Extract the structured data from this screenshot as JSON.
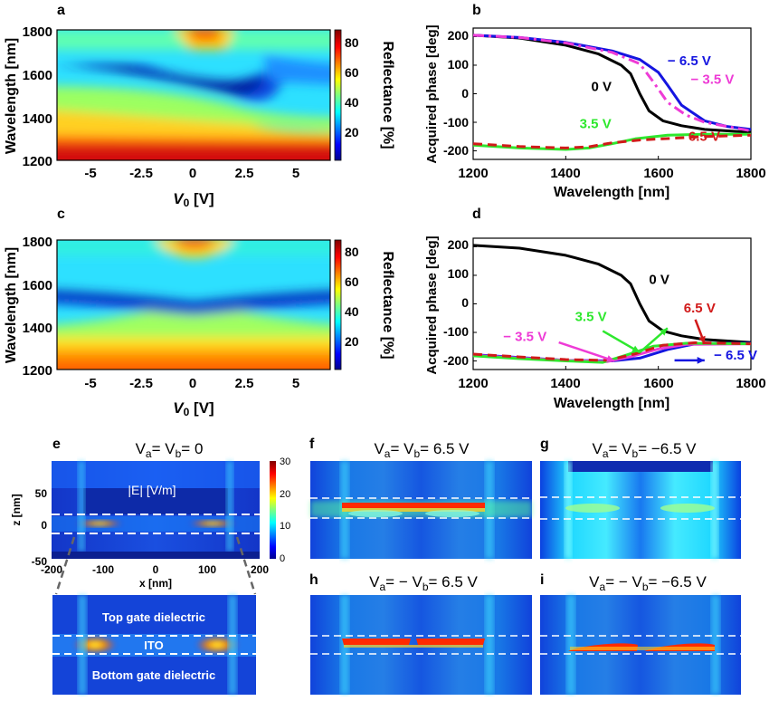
{
  "colors": {
    "black": "#000000",
    "blue": "#1515e0",
    "magenta": "#ee3bd6",
    "green": "#2ee82e",
    "red": "#d11a1a"
  },
  "chart_data": [
    {
      "id": "a",
      "panel_label": "a",
      "type": "heatmap",
      "xlabel": "V",
      "xlabel_sub": "0",
      "xlabel_unit": " [V]",
      "ylabel": "Wavelength [nm]",
      "xticks": [
        "-5",
        "-2.5",
        "0",
        "2.5",
        "5"
      ],
      "yticks": [
        "1200",
        "1400",
        "1600",
        "1800"
      ],
      "colorbar_label": "Reflectance [%]",
      "colorbar_ticks": [
        "20",
        "40",
        "60",
        "80"
      ],
      "xlim": [
        -6.5,
        6.5
      ],
      "ylim": [
        1200,
        1800
      ],
      "zlim": [
        0,
        88
      ]
    },
    {
      "id": "b",
      "panel_label": "b",
      "type": "line",
      "xlabel": "Wavelength [nm]",
      "ylabel": "Acquired phase [deg]",
      "xticks": [
        "1200",
        "1400",
        "1600",
        "1800"
      ],
      "yticks": [
        "200",
        "100",
        "0",
        "-100",
        "-200"
      ],
      "xlim": [
        1200,
        1800
      ],
      "ylim": [
        -230,
        230
      ],
      "series": [
        {
          "name": "0 V",
          "color": "#000000",
          "dash": "",
          "points": [
            [
              1200,
              205
            ],
            [
              1300,
              195
            ],
            [
              1400,
              170
            ],
            [
              1470,
              140
            ],
            [
              1520,
              100
            ],
            [
              1540,
              70
            ],
            [
              1560,
              0
            ],
            [
              1580,
              -60
            ],
            [
              1610,
              -95
            ],
            [
              1650,
              -112
            ],
            [
              1700,
              -125
            ],
            [
              1800,
              -135
            ]
          ]
        },
        {
          "name": "− 6.5 V",
          "color": "#1515e0",
          "dash": "",
          "points": [
            [
              1200,
              205
            ],
            [
              1300,
              197
            ],
            [
              1400,
              180
            ],
            [
              1500,
              150
            ],
            [
              1560,
              120
            ],
            [
              1600,
              75
            ],
            [
              1620,
              30
            ],
            [
              1650,
              -40
            ],
            [
              1700,
              -95
            ],
            [
              1750,
              -115
            ],
            [
              1800,
              -125
            ]
          ]
        },
        {
          "name": "− 3.5 V",
          "color": "#ee3bd6",
          "dash": "12 5 3 5",
          "points": [
            [
              1200,
              205
            ],
            [
              1300,
              197
            ],
            [
              1400,
              178
            ],
            [
              1500,
              145
            ],
            [
              1560,
              105
            ],
            [
              1590,
              40
            ],
            [
              1620,
              -30
            ],
            [
              1660,
              -75
            ],
            [
              1700,
              -100
            ],
            [
              1800,
              -130
            ]
          ]
        },
        {
          "name": "3.5 V",
          "color": "#2ee82e",
          "dash": "",
          "points": [
            [
              1200,
              -180
            ],
            [
              1300,
              -190
            ],
            [
              1400,
              -195
            ],
            [
              1450,
              -190
            ],
            [
              1500,
              -175
            ],
            [
              1550,
              -158
            ],
            [
              1620,
              -145
            ],
            [
              1700,
              -142
            ],
            [
              1800,
              -142
            ]
          ]
        },
        {
          "name": "6.5 V",
          "color": "#d11a1a",
          "dash": "10 6",
          "points": [
            [
              1200,
              -175
            ],
            [
              1300,
              -185
            ],
            [
              1400,
              -190
            ],
            [
              1450,
              -186
            ],
            [
              1500,
              -172
            ],
            [
              1560,
              -162
            ],
            [
              1640,
              -155
            ],
            [
              1700,
              -150
            ],
            [
              1800,
              -145
            ]
          ]
        }
      ],
      "labels": [
        {
          "text": "− 6.5 V",
          "color": "#1515e0",
          "x": 1620,
          "y": 100
        },
        {
          "text": "− 3.5 V",
          "color": "#ee3bd6",
          "x": 1670,
          "y": 35
        },
        {
          "text": "0 V",
          "color": "#000000",
          "x": 1455,
          "y": 10
        },
        {
          "text": "3.5 V",
          "color": "#2ee82e",
          "x": 1430,
          "y": -120
        },
        {
          "text": "6.5 V",
          "color": "#d11a1a",
          "x": 1665,
          "y": -165
        }
      ]
    },
    {
      "id": "c",
      "panel_label": "c",
      "type": "heatmap",
      "xlabel": "V",
      "xlabel_sub": "0",
      "xlabel_unit": " [V]",
      "ylabel": "Wavelength [nm]",
      "xticks": [
        "-5",
        "-2.5",
        "0",
        "2.5",
        "5"
      ],
      "yticks": [
        "1200",
        "1400",
        "1600",
        "1800"
      ],
      "colorbar_label": "Reflectance [%]",
      "colorbar_ticks": [
        "20",
        "40",
        "60",
        "80"
      ],
      "xlim": [
        -6.5,
        6.5
      ],
      "ylim": [
        1200,
        1800
      ],
      "zlim": [
        0,
        88
      ]
    },
    {
      "id": "d",
      "panel_label": "d",
      "type": "line",
      "xlabel": "Wavelength [nm]",
      "ylabel": "Acquired phase [deg]",
      "xticks": [
        "1200",
        "1400",
        "1600",
        "1800"
      ],
      "yticks": [
        "200",
        "100",
        "0",
        "-100",
        "-200"
      ],
      "xlim": [
        1200,
        1800
      ],
      "ylim": [
        -230,
        230
      ],
      "series": [
        {
          "name": "0 V",
          "color": "#000000",
          "dash": "",
          "points": [
            [
              1200,
              205
            ],
            [
              1300,
              195
            ],
            [
              1400,
              170
            ],
            [
              1470,
              140
            ],
            [
              1520,
              100
            ],
            [
              1540,
              70
            ],
            [
              1560,
              0
            ],
            [
              1580,
              -60
            ],
            [
              1610,
              -95
            ],
            [
              1650,
              -112
            ],
            [
              1700,
              -125
            ],
            [
              1800,
              -135
            ]
          ]
        },
        {
          "name": "− 6.5 V",
          "color": "#1515e0",
          "dash": "",
          "points": [
            [
              1200,
              -178
            ],
            [
              1300,
              -188
            ],
            [
              1400,
              -198
            ],
            [
              1500,
              -200
            ],
            [
              1560,
              -190
            ],
            [
              1620,
              -160
            ],
            [
              1680,
              -140
            ],
            [
              1740,
              -138
            ],
            [
              1800,
              -138
            ]
          ]
        },
        {
          "name": "− 3.5 V",
          "color": "#ee3bd6",
          "dash": "",
          "points": [
            [
              1200,
              -180
            ],
            [
              1300,
              -190
            ],
            [
              1400,
              -198
            ],
            [
              1490,
              -202
            ],
            [
              1540,
              -185
            ],
            [
              1600,
              -158
            ],
            [
              1660,
              -142
            ],
            [
              1800,
              -140
            ]
          ]
        },
        {
          "name": "3.5 V",
          "color": "#2ee82e",
          "dash": "",
          "points": [
            [
              1200,
              -182
            ],
            [
              1300,
              -192
            ],
            [
              1400,
              -200
            ],
            [
              1480,
              -205
            ],
            [
              1530,
              -180
            ],
            [
              1590,
              -148
            ],
            [
              1660,
              -138
            ],
            [
              1800,
              -140
            ]
          ]
        },
        {
          "name": "6.5 V",
          "color": "#d11a1a",
          "dash": "10 6",
          "points": [
            [
              1200,
              -176
            ],
            [
              1300,
              -186
            ],
            [
              1400,
              -195
            ],
            [
              1490,
              -198
            ],
            [
              1550,
              -175
            ],
            [
              1610,
              -145
            ],
            [
              1680,
              -136
            ],
            [
              1800,
              -140
            ]
          ]
        }
      ],
      "labels": [
        {
          "text": "0 V",
          "color": "#000000",
          "x": 1580,
          "y": 70
        },
        {
          "text": "6.5 V",
          "color": "#d11a1a",
          "x": 1655,
          "y": -30
        },
        {
          "text": "3.5 V",
          "color": "#2ee82e",
          "x": 1420,
          "y": -60
        },
        {
          "text": "− 3.5 V",
          "color": "#ee3bd6",
          "x": 1265,
          "y": -130
        },
        {
          "text": "− 6.5 V",
          "color": "#1515e0",
          "x": 1720,
          "y": -195
        }
      ],
      "arrows": [
        {
          "color": "#d11a1a",
          "from": [
            1680,
            -55
          ],
          "to": [
            1700,
            -140
          ]
        },
        {
          "color": "#2ee82e",
          "from": [
            1480,
            -95
          ],
          "to": [
            1560,
            -170
          ]
        },
        {
          "color": "#2ee82e",
          "from": [
            1560,
            -170
          ],
          "to": [
            1620,
            -85
          ]
        },
        {
          "color": "#ee3bd6",
          "from": [
            1385,
            -135
          ],
          "to": [
            1505,
            -200
          ]
        },
        {
          "color": "#1515e0",
          "from": [
            1635,
            -198
          ],
          "to": [
            1700,
            -198
          ]
        }
      ]
    }
  ],
  "field_maps": {
    "e": {
      "panel_label": "e",
      "title": "V",
      "title_sub_a": "a",
      "title_eq": "= V",
      "title_sub_b": "b",
      "title_rest": "= 0",
      "field_label": "|E| [V/m]",
      "xlabel": "x [nm]",
      "ylabel": "z [nm]",
      "xticks": [
        "-200",
        "-100",
        "0",
        "100",
        "200"
      ],
      "yticks": [
        "50",
        "0",
        "-50"
      ],
      "colorbar_ticks": [
        "30",
        "20",
        "10",
        "0"
      ],
      "zoom_labels": {
        "top": "Top gate dielectric",
        "middle": "ITO",
        "bottom": "Bottom gate dielectric"
      }
    },
    "f": {
      "panel_label": "f",
      "title": "V",
      "title_sub_a": "a",
      "title_eq": "= V",
      "title_sub_b": "b",
      "title_rest": "= 6.5 V"
    },
    "g": {
      "panel_label": "g",
      "title": "V",
      "title_sub_a": "a",
      "title_eq": "= V",
      "title_sub_b": "b",
      "title_rest": "= −6.5 V"
    },
    "h": {
      "panel_label": "h",
      "title": "V",
      "title_sub_a": "a",
      "title_eq": "= − V",
      "title_sub_b": "b",
      "title_rest": "= 6.5 V"
    },
    "i": {
      "panel_label": "i",
      "title": "V",
      "title_sub_a": "a",
      "title_eq": "= − V",
      "title_sub_b": "b",
      "title_rest": "= −6.5 V"
    }
  }
}
